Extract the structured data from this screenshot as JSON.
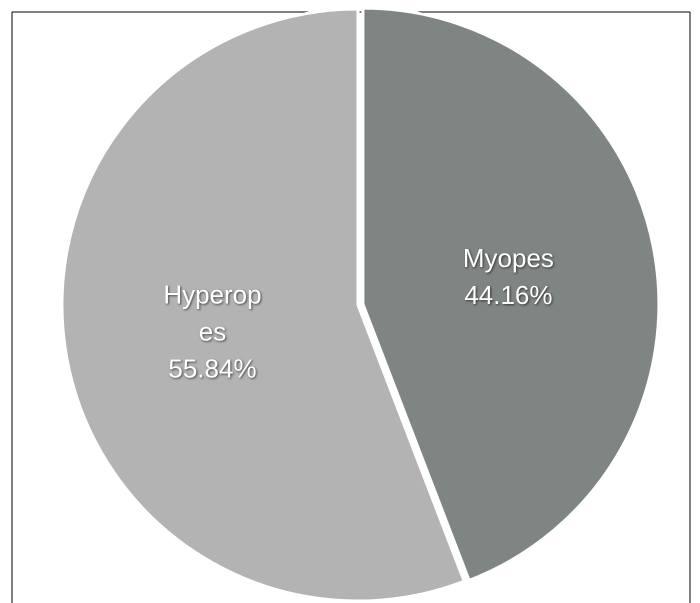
{
  "chart_data": {
    "type": "pie",
    "categories": [
      "Myopes",
      "Hyperopes"
    ],
    "values": [
      44.16,
      55.84
    ],
    "value_labels": [
      "44.16%",
      "55.84%"
    ],
    "colors": [
      "#7f8582",
      "#b3b3b3"
    ]
  }
}
